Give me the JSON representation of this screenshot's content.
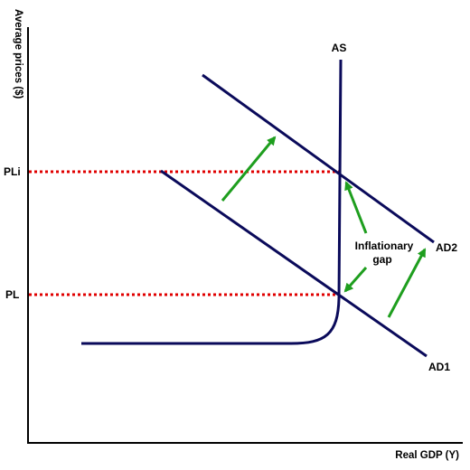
{
  "diagram": {
    "y_axis_label": "Average prices  ($)",
    "x_axis_label": "Real GDP (Y)",
    "curves": {
      "as_label": "AS",
      "ad1_label": "AD1",
      "ad2_label": "AD2"
    },
    "price_levels": {
      "initial": "PL",
      "inflated": "PLi"
    },
    "gap_label_line1": "Inflationary",
    "gap_label_line2": "gap",
    "colors": {
      "curve": "#0a0a5a",
      "axis": "#000000",
      "guide": "#e00000",
      "arrow": "#1e9e1e"
    }
  }
}
